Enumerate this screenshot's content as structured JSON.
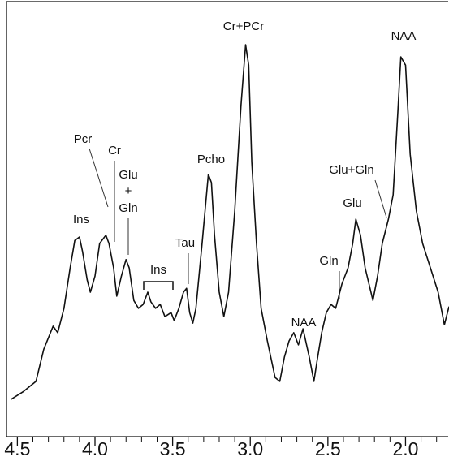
{
  "chart_data": {
    "type": "line",
    "series": [
      {
        "color": "#111111",
        "x": [
          4.54,
          4.46,
          4.38,
          4.33,
          4.27,
          4.24,
          4.2,
          4.16,
          4.13,
          4.1,
          4.08,
          4.05,
          4.03,
          4.0,
          3.97,
          3.93,
          3.91,
          3.88,
          3.86,
          3.83,
          3.8,
          3.78,
          3.75,
          3.72,
          3.69,
          3.66,
          3.64,
          3.61,
          3.58,
          3.55,
          3.51,
          3.49,
          3.46,
          3.43,
          3.41,
          3.39,
          3.37,
          3.35,
          3.31,
          3.27,
          3.25,
          3.23,
          3.2,
          3.17,
          3.14,
          3.1,
          3.06,
          3.03,
          3.01,
          2.99,
          2.96,
          2.93,
          2.89,
          2.84,
          2.81,
          2.78,
          2.75,
          2.72,
          2.69,
          2.66,
          2.62,
          2.59,
          2.57,
          2.54,
          2.51,
          2.48,
          2.45,
          2.41,
          2.37,
          2.34,
          2.32,
          2.29,
          2.26,
          2.21,
          2.18,
          2.15,
          2.11,
          2.08,
          2.05,
          2.03,
          2.0,
          1.97,
          1.93,
          1.89,
          1.84,
          1.79,
          1.75,
          1.72
        ],
        "values": [
          8.6,
          10.4,
          12.7,
          20.1,
          25.4,
          23.9,
          29.5,
          38.8,
          45.1,
          45.9,
          42.5,
          36.0,
          33.2,
          36.9,
          44.4,
          46.3,
          44.4,
          38.8,
          32.3,
          36.9,
          40.7,
          38.8,
          31.3,
          29.5,
          30.4,
          33.2,
          31.0,
          29.5,
          30.4,
          27.6,
          28.5,
          26.7,
          29.5,
          33.2,
          34.1,
          28.5,
          26.1,
          29.5,
          44.4,
          60.3,
          58.4,
          46.3,
          33.2,
          27.6,
          33.2,
          51.9,
          76.1,
          90.1,
          85.4,
          63.1,
          44.4,
          29.5,
          22.0,
          13.6,
          12.7,
          18.3,
          22.0,
          23.9,
          21.1,
          24.8,
          18.3,
          12.7,
          17.4,
          23.9,
          28.5,
          30.4,
          29.5,
          35.1,
          38.8,
          44.4,
          50.0,
          46.3,
          38.8,
          31.3,
          36.9,
          44.4,
          50.0,
          55.6,
          74.3,
          87.3,
          85.4,
          64.9,
          51.9,
          44.4,
          38.8,
          33.2,
          25.7,
          29.9
        ]
      }
    ],
    "xlim": [
      4.57,
      1.72
    ],
    "ylim": [
      0,
      100
    ],
    "xticks": [
      4.5,
      {
        "value": 4,
        "label": "4.0"
      },
      3.5,
      {
        "value": 3,
        "label": "3.0"
      },
      2.5,
      {
        "value": 2,
        "label": "2.0"
      }
    ],
    "xminorticks": [
      4.4,
      4.3,
      4.2,
      4.1,
      3.9,
      3.8,
      3.7,
      3.6,
      3.4,
      3.3,
      3.2,
      3.1,
      2.9,
      2.8,
      2.7,
      2.6,
      2.4,
      2.3,
      2.2,
      2.1,
      1.9,
      1.8
    ],
    "annotations": [
      "Cr+PCr",
      "NAA",
      "Pcr",
      "Cr",
      "Glu",
      "+",
      "Gln",
      "Ins",
      "Pcho",
      "Tau",
      "Ins",
      "NAA",
      "Gln",
      "Glu",
      "Glu+Gln"
    ]
  }
}
